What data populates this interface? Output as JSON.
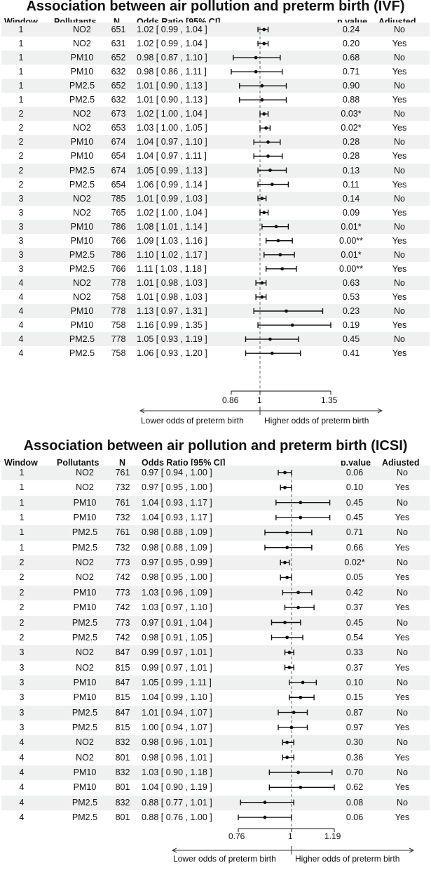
{
  "headers": {
    "window": "Window",
    "pollutants": "Pollutants",
    "n": "N",
    "or": "Odds Ratio [95% CI]",
    "p": "p.value",
    "adjusted": "Adjusted"
  },
  "chart_data": [
    {
      "type": "forest",
      "title": "Association between air pollution and  preterm birth (IVF)",
      "xlim": [
        0.86,
        1.35
      ],
      "reference": 1,
      "ticks": [
        "0.86",
        "1",
        "1.35"
      ],
      "lower_label": "Lower odds of preterm birth",
      "higher_label": "Higher odds of preterm birth",
      "rows": [
        {
          "window": "1",
          "pollutant": "NO2",
          "n": "651",
          "est": 1.02,
          "lo": 0.99,
          "hi": 1.04,
          "ci": "1.02 [ 0.99 , 1.04 ]",
          "p": "0.24",
          "adj": "No"
        },
        {
          "window": "1",
          "pollutant": "NO2",
          "n": "631",
          "est": 1.02,
          "lo": 0.99,
          "hi": 1.04,
          "ci": "1.02 [ 0.99 , 1.04 ]",
          "p": "0.20",
          "adj": "Yes"
        },
        {
          "window": "1",
          "pollutant": "PM10",
          "n": "652",
          "est": 0.98,
          "lo": 0.87,
          "hi": 1.1,
          "ci": "0.98 [ 0.87 , 1.10 ]",
          "p": "0.68",
          "adj": "No"
        },
        {
          "window": "1",
          "pollutant": "PM10",
          "n": "632",
          "est": 0.98,
          "lo": 0.86,
          "hi": 1.11,
          "ci": "0.98 [ 0.86 , 1.11 ]",
          "p": "0.71",
          "adj": "Yes"
        },
        {
          "window": "1",
          "pollutant": "PM2.5",
          "n": "652",
          "est": 1.01,
          "lo": 0.9,
          "hi": 1.13,
          "ci": "1.01 [ 0.90 , 1.13 ]",
          "p": "0.90",
          "adj": "No"
        },
        {
          "window": "1",
          "pollutant": "PM2.5",
          "n": "632",
          "est": 1.01,
          "lo": 0.9,
          "hi": 1.13,
          "ci": "1.01 [ 0.90 , 1.13 ]",
          "p": "0.88",
          "adj": "Yes"
        },
        {
          "window": "2",
          "pollutant": "NO2",
          "n": "673",
          "est": 1.02,
          "lo": 1.0,
          "hi": 1.04,
          "ci": "1.02 [ 1.00 , 1.04 ]",
          "p": "0.03*",
          "adj": "No"
        },
        {
          "window": "2",
          "pollutant": "NO2",
          "n": "653",
          "est": 1.03,
          "lo": 1.0,
          "hi": 1.05,
          "ci": "1.03 [ 1.00 , 1.05 ]",
          "p": "0.02*",
          "adj": "Yes"
        },
        {
          "window": "2",
          "pollutant": "PM10",
          "n": "674",
          "est": 1.04,
          "lo": 0.97,
          "hi": 1.1,
          "ci": "1.04 [ 0.97 , 1.10 ]",
          "p": "0.28",
          "adj": "No"
        },
        {
          "window": "2",
          "pollutant": "PM10",
          "n": "654",
          "est": 1.04,
          "lo": 0.97,
          "hi": 1.11,
          "ci": "1.04 [ 0.97 , 1.11 ]",
          "p": "0.28",
          "adj": "Yes"
        },
        {
          "window": "2",
          "pollutant": "PM2.5",
          "n": "674",
          "est": 1.05,
          "lo": 0.99,
          "hi": 1.13,
          "ci": "1.05 [ 0.99 , 1.13 ]",
          "p": "0.13",
          "adj": "No"
        },
        {
          "window": "2",
          "pollutant": "PM2.5",
          "n": "654",
          "est": 1.06,
          "lo": 0.99,
          "hi": 1.14,
          "ci": "1.06 [ 0.99 , 1.14 ]",
          "p": "0.11",
          "adj": "Yes"
        },
        {
          "window": "3",
          "pollutant": "NO2",
          "n": "785",
          "est": 1.01,
          "lo": 0.99,
          "hi": 1.03,
          "ci": "1.01 [ 0.99 , 1.03 ]",
          "p": "0.14",
          "adj": "No"
        },
        {
          "window": "3",
          "pollutant": "NO2",
          "n": "765",
          "est": 1.02,
          "lo": 1.0,
          "hi": 1.04,
          "ci": "1.02 [ 1.00 , 1.04 ]",
          "p": "0.09",
          "adj": "Yes"
        },
        {
          "window": "3",
          "pollutant": "PM10",
          "n": "786",
          "est": 1.08,
          "lo": 1.01,
          "hi": 1.14,
          "ci": "1.08 [ 1.01 , 1.14 ]",
          "p": "0.01*",
          "adj": "No"
        },
        {
          "window": "3",
          "pollutant": "PM10",
          "n": "766",
          "est": 1.09,
          "lo": 1.03,
          "hi": 1.16,
          "ci": "1.09 [ 1.03 , 1.16 ]",
          "p": "0.00**",
          "adj": "Yes"
        },
        {
          "window": "3",
          "pollutant": "PM2.5",
          "n": "786",
          "est": 1.1,
          "lo": 1.02,
          "hi": 1.17,
          "ci": "1.10 [ 1.02 , 1.17 ]",
          "p": "0.01*",
          "adj": "No"
        },
        {
          "window": "3",
          "pollutant": "PM2.5",
          "n": "766",
          "est": 1.11,
          "lo": 1.03,
          "hi": 1.18,
          "ci": "1.11 [ 1.03 , 1.18 ]",
          "p": "0.00**",
          "adj": "Yes"
        },
        {
          "window": "4",
          "pollutant": "NO2",
          "n": "778",
          "est": 1.01,
          "lo": 0.98,
          "hi": 1.03,
          "ci": "1.01 [ 0.98 , 1.03 ]",
          "p": "0.63",
          "adj": "No"
        },
        {
          "window": "4",
          "pollutant": "NO2",
          "n": "758",
          "est": 1.01,
          "lo": 0.98,
          "hi": 1.03,
          "ci": "1.01 [ 0.98 , 1.03 ]",
          "p": "0.53",
          "adj": "Yes"
        },
        {
          "window": "4",
          "pollutant": "PM10",
          "n": "778",
          "est": 1.13,
          "lo": 0.97,
          "hi": 1.31,
          "ci": "1.13 [ 0.97 , 1.31 ]",
          "p": "0.23",
          "adj": "No"
        },
        {
          "window": "4",
          "pollutant": "PM10",
          "n": "758",
          "est": 1.16,
          "lo": 0.99,
          "hi": 1.35,
          "ci": "1.16 [ 0.99 , 1.35 ]",
          "p": "0.19",
          "adj": "Yes"
        },
        {
          "window": "4",
          "pollutant": "PM2.5",
          "n": "778",
          "est": 1.05,
          "lo": 0.93,
          "hi": 1.19,
          "ci": "1.05 [ 0.93 , 1.19 ]",
          "p": "0.45",
          "adj": "No"
        },
        {
          "window": "4",
          "pollutant": "PM2.5",
          "n": "758",
          "est": 1.06,
          "lo": 0.93,
          "hi": 1.2,
          "ci": "1.06 [ 0.93 , 1.20 ]",
          "p": "0.41",
          "adj": "Yes"
        }
      ]
    },
    {
      "type": "forest",
      "title": "Association between air pollution and  preterm birth (ICSI)",
      "xlim": [
        0.76,
        1.19
      ],
      "reference": 1,
      "ticks": [
        "0.76",
        "1",
        "1.19"
      ],
      "lower_label": "Lower odds of preterm birth",
      "higher_label": "Higher odds of preterm birth",
      "rows": [
        {
          "window": "1",
          "pollutant": "NO2",
          "n": "761",
          "est": 0.97,
          "lo": 0.94,
          "hi": 1.0,
          "ci": "0.97 [ 0.94 , 1.00 ]",
          "p": "0.06",
          "adj": "No"
        },
        {
          "window": "1",
          "pollutant": "NO2",
          "n": "732",
          "est": 0.97,
          "lo": 0.95,
          "hi": 1.0,
          "ci": "0.97 [ 0.95 , 1.00 ]",
          "p": "0.10",
          "adj": "Yes"
        },
        {
          "window": "1",
          "pollutant": "PM10",
          "n": "761",
          "est": 1.04,
          "lo": 0.93,
          "hi": 1.17,
          "ci": "1.04 [ 0.93 , 1.17 ]",
          "p": "0.45",
          "adj": "No"
        },
        {
          "window": "1",
          "pollutant": "PM10",
          "n": "732",
          "est": 1.04,
          "lo": 0.93,
          "hi": 1.17,
          "ci": "1.04 [ 0.93 , 1.17 ]",
          "p": "0.45",
          "adj": "Yes"
        },
        {
          "window": "1",
          "pollutant": "PM2.5",
          "n": "761",
          "est": 0.98,
          "lo": 0.88,
          "hi": 1.09,
          "ci": "0.98 [ 0.88 , 1.09 ]",
          "p": "0.71",
          "adj": "No"
        },
        {
          "window": "1",
          "pollutant": "PM2.5",
          "n": "732",
          "est": 0.98,
          "lo": 0.88,
          "hi": 1.09,
          "ci": "0.98 [ 0.88 , 1.09 ]",
          "p": "0.66",
          "adj": "Yes"
        },
        {
          "window": "2",
          "pollutant": "NO2",
          "n": "773",
          "est": 0.97,
          "lo": 0.95,
          "hi": 0.99,
          "ci": "0.97 [ 0.95 , 0.99 ]",
          "p": "0.02*",
          "adj": "No"
        },
        {
          "window": "2",
          "pollutant": "NO2",
          "n": "742",
          "est": 0.98,
          "lo": 0.95,
          "hi": 1.0,
          "ci": "0.98 [ 0.95 , 1.00 ]",
          "p": "0.05",
          "adj": "Yes"
        },
        {
          "window": "2",
          "pollutant": "PM10",
          "n": "773",
          "est": 1.03,
          "lo": 0.96,
          "hi": 1.09,
          "ci": "1.03 [ 0.96 , 1.09 ]",
          "p": "0.42",
          "adj": "No"
        },
        {
          "window": "2",
          "pollutant": "PM10",
          "n": "742",
          "est": 1.03,
          "lo": 0.97,
          "hi": 1.1,
          "ci": "1.03 [ 0.97 , 1.10 ]",
          "p": "0.37",
          "adj": "Yes"
        },
        {
          "window": "2",
          "pollutant": "PM2.5",
          "n": "773",
          "est": 0.97,
          "lo": 0.91,
          "hi": 1.04,
          "ci": "0.97 [ 0.91 , 1.04 ]",
          "p": "0.45",
          "adj": "No"
        },
        {
          "window": "2",
          "pollutant": "PM2.5",
          "n": "742",
          "est": 0.98,
          "lo": 0.91,
          "hi": 1.05,
          "ci": "0.98 [ 0.91 , 1.05 ]",
          "p": "0.54",
          "adj": "Yes"
        },
        {
          "window": "3",
          "pollutant": "NO2",
          "n": "847",
          "est": 0.99,
          "lo": 0.97,
          "hi": 1.01,
          "ci": "0.99 [ 0.97 , 1.01 ]",
          "p": "0.33",
          "adj": "No"
        },
        {
          "window": "3",
          "pollutant": "NO2",
          "n": "815",
          "est": 0.99,
          "lo": 0.97,
          "hi": 1.01,
          "ci": "0.99 [ 0.97 , 1.01 ]",
          "p": "0.37",
          "adj": "Yes"
        },
        {
          "window": "3",
          "pollutant": "PM10",
          "n": "847",
          "est": 1.05,
          "lo": 0.99,
          "hi": 1.11,
          "ci": "1.05 [ 0.99 , 1.11 ]",
          "p": "0.10",
          "adj": "No"
        },
        {
          "window": "3",
          "pollutant": "PM10",
          "n": "815",
          "est": 1.04,
          "lo": 0.99,
          "hi": 1.1,
          "ci": "1.04 [ 0.99 , 1.10 ]",
          "p": "0.15",
          "adj": "Yes"
        },
        {
          "window": "3",
          "pollutant": "PM2.5",
          "n": "847",
          "est": 1.01,
          "lo": 0.94,
          "hi": 1.07,
          "ci": "1.01 [ 0.94 , 1.07 ]",
          "p": "0.87",
          "adj": "No"
        },
        {
          "window": "3",
          "pollutant": "PM2.5",
          "n": "815",
          "est": 1.0,
          "lo": 0.94,
          "hi": 1.07,
          "ci": "1.00 [ 0.94 , 1.07 ]",
          "p": "0.97",
          "adj": "Yes"
        },
        {
          "window": "4",
          "pollutant": "NO2",
          "n": "832",
          "est": 0.98,
          "lo": 0.96,
          "hi": 1.01,
          "ci": "0.98 [ 0.96 , 1.01 ]",
          "p": "0.30",
          "adj": "No"
        },
        {
          "window": "4",
          "pollutant": "NO2",
          "n": "801",
          "est": 0.98,
          "lo": 0.96,
          "hi": 1.01,
          "ci": "0.98 [ 0.96 , 1.01 ]",
          "p": "0.36",
          "adj": "Yes"
        },
        {
          "window": "4",
          "pollutant": "PM10",
          "n": "832",
          "est": 1.03,
          "lo": 0.9,
          "hi": 1.18,
          "ci": "1.03 [ 0.90 , 1.18 ]",
          "p": "0.70",
          "adj": "No"
        },
        {
          "window": "4",
          "pollutant": "PM10",
          "n": "801",
          "est": 1.04,
          "lo": 0.9,
          "hi": 1.19,
          "ci": "1.04 [ 0.90 , 1.19 ]",
          "p": "0.62",
          "adj": "Yes"
        },
        {
          "window": "4",
          "pollutant": "PM2.5",
          "n": "832",
          "est": 0.88,
          "lo": 0.77,
          "hi": 1.01,
          "ci": "0.88 [ 0.77 , 1.01 ]",
          "p": "0.08",
          "adj": "No"
        },
        {
          "window": "4",
          "pollutant": "PM2.5",
          "n": "801",
          "est": 0.88,
          "lo": 0.76,
          "hi": 1.0,
          "ci": "0.88 [ 0.76 , 1.00 ]",
          "p": "0.06",
          "adj": "Yes"
        }
      ]
    }
  ]
}
